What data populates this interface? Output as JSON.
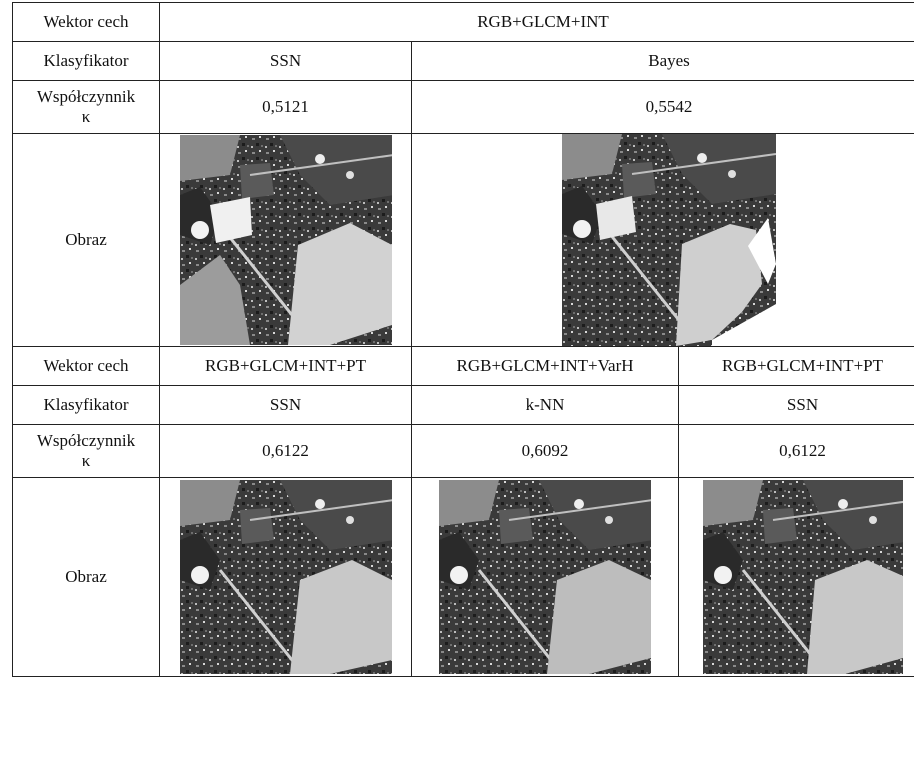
{
  "table": {
    "row_labels": {
      "feature_vector": "Wektor cech",
      "classifier": "Klasyfikator",
      "coefficient_line1": "Współczynnik",
      "coefficient_line2": "κ",
      "image": "Obraz"
    },
    "block1": {
      "feature_vector": "RGB+GLCM+INT",
      "columns": [
        {
          "classifier": "SSN",
          "kappa": "0,5121"
        },
        {
          "classifier": "Bayes",
          "kappa": "0,5542"
        }
      ]
    },
    "block2": {
      "columns": [
        {
          "feature_vector": "RGB+GLCM+INT+PT",
          "classifier": "SSN",
          "kappa": "0,6122"
        },
        {
          "feature_vector": "RGB+GLCM+INT+VarH",
          "classifier": "k-NN",
          "kappa": "0,6092"
        },
        {
          "feature_vector": "RGB+GLCM+INT+PT",
          "classifier": "SSN",
          "kappa": "0,6122"
        }
      ]
    }
  }
}
